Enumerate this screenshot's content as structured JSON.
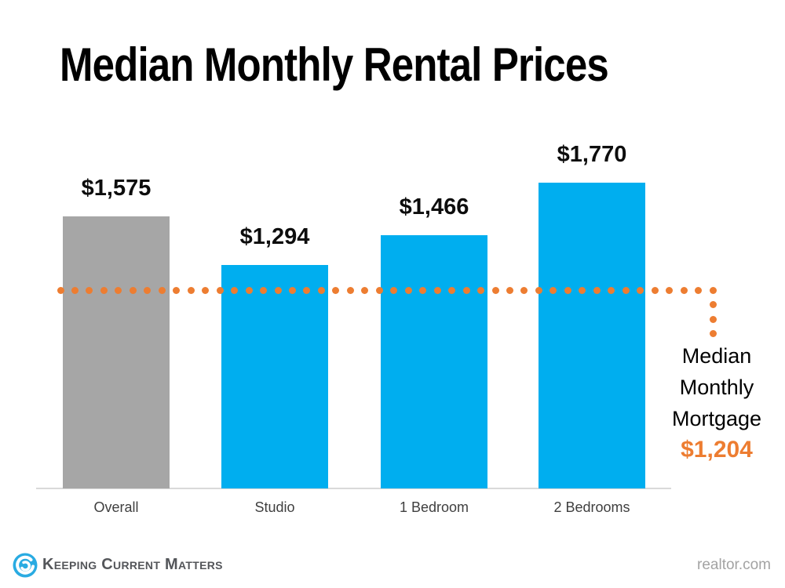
{
  "chart_data": {
    "type": "bar",
    "title": "Median Monthly Rental Prices",
    "categories": [
      "Overall",
      "Studio",
      "1 Bedroom",
      "2 Bedrooms"
    ],
    "values": [
      1575,
      1294,
      1466,
      1770
    ],
    "value_labels": [
      "$1,575",
      "$1,294",
      "$1,466",
      "$1,770"
    ],
    "bar_colors": [
      "#a6a6a6",
      "#00aeef",
      "#00aeef",
      "#00aeef"
    ],
    "ylim": [
      0,
      1900
    ],
    "grid": false,
    "y_axis_visible": false,
    "x_axis_line_color": "#d9d9d9",
    "reference_line": {
      "value": 1204,
      "value_label": "$1,204",
      "label_lines": [
        "Median",
        "Monthly",
        "Mortgage"
      ],
      "color": "#ed7d31",
      "style": "dotted"
    }
  },
  "footer": {
    "brand": "Keeping Current Matters",
    "source": "realtor.com"
  },
  "colors": {
    "bar_blue": "#00aeef",
    "bar_gray": "#a6a6a6",
    "accent_orange": "#ed7d31",
    "axis_gray": "#d9d9d9",
    "brand_blue": "#29abe2",
    "brand_text_gray": "#54565a",
    "category_text": "#3f3f3f"
  }
}
